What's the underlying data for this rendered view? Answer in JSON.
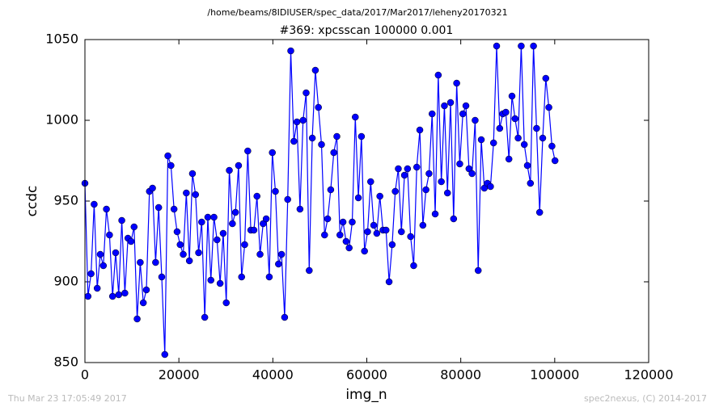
{
  "chart_data": {
    "type": "line",
    "title": "/home/beams/8IDIUSER/spec_data/2017/Mar2017/leheny20170321",
    "subtitle": "#369: xpcsscan 100000 0.001",
    "xlabel": "img_n",
    "ylabel": "ccdc",
    "footer_left": "Thu Mar 23 17:05:49 2017",
    "footer_right": "spec2nexus, (C) 2014-2017",
    "color": "#0000ff",
    "xlim": [
      0,
      120000
    ],
    "xticks": [
      0,
      20000,
      40000,
      60000,
      80000,
      100000,
      120000
    ],
    "ylim": [
      850,
      1050
    ],
    "yticks": [
      850,
      900,
      950,
      1000,
      1050
    ],
    "x": [
      0,
      654,
      1308,
      1962,
      2616,
      3270,
      3924,
      4578,
      5232,
      5886,
      6540,
      7194,
      7848,
      8502,
      9156,
      9810,
      10464,
      11118,
      11772,
      12426,
      13080,
      13734,
      14388,
      15042,
      15696,
      16350,
      17004,
      17658,
      18312,
      18966,
      19620,
      20274,
      20928,
      21582,
      22236,
      22890,
      23544,
      24198,
      24852,
      25506,
      26160,
      26814,
      27468,
      28122,
      28776,
      29430,
      30084,
      30738,
      31392,
      32046,
      32700,
      33354,
      34008,
      34662,
      35316,
      35970,
      36624,
      37278,
      37932,
      38586,
      39240,
      39894,
      40548,
      41202,
      41856,
      42510,
      43164,
      43818,
      44472,
      45126,
      45780,
      46434,
      47088,
      47742,
      48396,
      49050,
      49704,
      50358,
      51012,
      51666,
      52320,
      52974,
      53628,
      54282,
      54936,
      55590,
      56244,
      56898,
      57552,
      58206,
      58860,
      59514,
      60168,
      60822,
      61476,
      62130,
      62784,
      63438,
      64092,
      64746,
      65400,
      66054,
      66708,
      67362,
      68016,
      68670,
      69324,
      69978,
      70632,
      71286,
      71940,
      72594,
      73248,
      73902,
      74556,
      75210,
      75864,
      76518,
      77172,
      77826,
      78480,
      79134,
      79788,
      80442,
      81096,
      81750,
      82404,
      83058,
      83712,
      84366,
      85020,
      85674,
      86328,
      86982,
      87636,
      88290,
      88944,
      89598,
      90252,
      90906,
      91560,
      92214,
      92868,
      93522,
      94176,
      94830,
      95484,
      96138,
      96792,
      97446,
      98100,
      98754,
      99408,
      100062
    ],
    "values": [
      961,
      891,
      905,
      948,
      896,
      917,
      910,
      945,
      929,
      891,
      918,
      892,
      938,
      893,
      927,
      925,
      934,
      877,
      912,
      887,
      895,
      956,
      958,
      912,
      946,
      903,
      855,
      978,
      972,
      945,
      931,
      923,
      917,
      955,
      913,
      967,
      954,
      918,
      937,
      878,
      940,
      901,
      940,
      926,
      899,
      930,
      887,
      969,
      936,
      943,
      972,
      903,
      923,
      981,
      932,
      932,
      953,
      917,
      936,
      939,
      903,
      980,
      956,
      911,
      917,
      878,
      951,
      1043,
      987,
      999,
      945,
      1000,
      1017,
      907,
      989,
      1031,
      1008,
      985,
      929,
      939,
      957,
      980,
      990,
      929,
      937,
      925,
      921,
      937,
      1002,
      952,
      990,
      919,
      931,
      962,
      935,
      930,
      953,
      932,
      932,
      900,
      923,
      956,
      970,
      931,
      966,
      970,
      928,
      910,
      971,
      994,
      935,
      957,
      967,
      1004,
      942,
      1028,
      962,
      1009,
      955,
      1011,
      939,
      1023,
      973,
      1004,
      1009,
      970,
      967,
      1000,
      907,
      988,
      958,
      961,
      959,
      986,
      1046,
      995,
      1004,
      1005,
      976,
      1015,
      1001,
      989,
      1046,
      985,
      972,
      961,
      1046,
      995,
      943,
      989,
      1026,
      1008,
      984,
      975
    ]
  }
}
